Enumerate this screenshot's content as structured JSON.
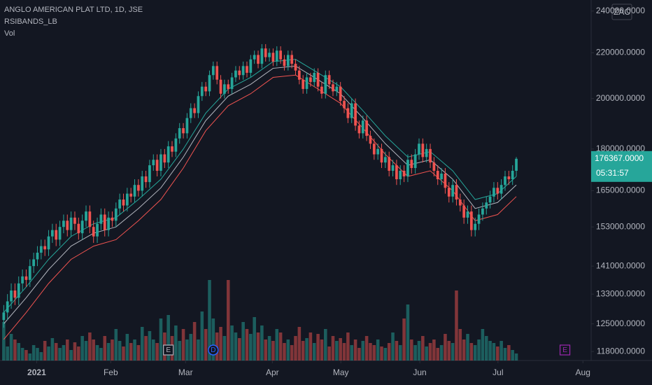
{
  "chart_data": {
    "type": "candlestick",
    "title": "ANGLO AMERICAN PLAT LTD, 1D, JSE",
    "indicator_label": "RSIBANDS_LB",
    "volume_label": "Vol",
    "currency": "ZAC",
    "log_scale": true,
    "up_color": "#26a69a",
    "down_color": "#ef5350",
    "open": [
      126000,
      128000,
      131000,
      134000,
      132000,
      136000,
      138000,
      137000,
      141000,
      143000,
      145000,
      147000,
      146000,
      150000,
      152000,
      149000,
      153000,
      155000,
      152000,
      156000,
      154000,
      151000,
      155000,
      158000,
      153000,
      150000,
      154000,
      157000,
      152000,
      156000,
      155000,
      159000,
      162000,
      160000,
      164000,
      163000,
      167000,
      165000,
      170000,
      168000,
      174000,
      176000,
      172000,
      178000,
      175000,
      181000,
      179000,
      184000,
      188000,
      186000,
      192000,
      196000,
      194000,
      201000,
      205000,
      203000,
      210000,
      214000,
      208000,
      202000,
      206000,
      204000,
      209000,
      212000,
      210000,
      214000,
      211000,
      217000,
      219000,
      215000,
      222000,
      218000,
      220000,
      216000,
      221000,
      217000,
      214000,
      219000,
      215000,
      212000,
      208000,
      204000,
      209000,
      207000,
      211000,
      205000,
      202000,
      210000,
      206000,
      203000,
      205000,
      199000,
      196000,
      192000,
      198000,
      189000,
      186000,
      191000,
      185000,
      182000,
      178000,
      180000,
      175000,
      177000,
      172000,
      174000,
      169000,
      172000,
      170000,
      176000,
      173000,
      178000,
      182000,
      177000,
      180000,
      175000,
      172000,
      169000,
      171000,
      166000,
      163000,
      167000,
      162000,
      160000,
      156000,
      158000,
      152000,
      154000,
      157000,
      159000,
      161000,
      163000,
      166000,
      164000,
      167000,
      170000,
      169000,
      172000
    ],
    "high": [
      130000,
      133000,
      136000,
      136000,
      138000,
      140000,
      140000,
      143000,
      145000,
      147000,
      149000,
      149000,
      152000,
      154000,
      154000,
      155000,
      157000,
      157000,
      158000,
      158000,
      156000,
      157000,
      160000,
      160000,
      155000,
      156000,
      159000,
      159000,
      158000,
      158000,
      161000,
      164000,
      164000,
      166000,
      166000,
      169000,
      169000,
      172000,
      172000,
      176000,
      178000,
      178000,
      180000,
      180000,
      183000,
      183000,
      186000,
      190000,
      190000,
      194000,
      198000,
      198000,
      203000,
      207000,
      207000,
      212000,
      216000,
      216000,
      210000,
      208000,
      208000,
      211000,
      214000,
      214000,
      216000,
      216000,
      219000,
      221000,
      221000,
      224000,
      224000,
      222000,
      222000,
      223000,
      223000,
      219000,
      221000,
      221000,
      217000,
      214000,
      210000,
      211000,
      211000,
      213000,
      213000,
      207000,
      212000,
      212000,
      208000,
      207000,
      207000,
      201000,
      198000,
      200000,
      200000,
      191000,
      193000,
      193000,
      187000,
      184000,
      182000,
      182000,
      179000,
      179000,
      176000,
      176000,
      174000,
      174000,
      178000,
      178000,
      180000,
      184000,
      184000,
      182000,
      182000,
      177000,
      174000,
      173000,
      173000,
      168000,
      169000,
      169000,
      164000,
      162000,
      160000,
      160000,
      156000,
      159000,
      161000,
      163000,
      165000,
      168000,
      168000,
      169000,
      172000,
      172000,
      174000,
      177000
    ],
    "low": [
      124000,
      126000,
      129000,
      130000,
      130000,
      134000,
      135000,
      135000,
      139000,
      141000,
      143000,
      144000,
      144000,
      148000,
      147000,
      147000,
      151000,
      150000,
      150000,
      152000,
      149000,
      149000,
      153000,
      151000,
      148000,
      148000,
      152000,
      150000,
      150000,
      153000,
      153000,
      157000,
      158000,
      158000,
      161000,
      161000,
      163000,
      163000,
      166000,
      166000,
      172000,
      170000,
      170000,
      173000,
      173000,
      177000,
      177000,
      182000,
      184000,
      184000,
      190000,
      192000,
      192000,
      199000,
      201000,
      201000,
      208000,
      206000,
      200000,
      200000,
      202000,
      202000,
      207000,
      208000,
      208000,
      209000,
      209000,
      215000,
      213000,
      213000,
      216000,
      216000,
      214000,
      214000,
      215000,
      212000,
      212000,
      213000,
      210000,
      206000,
      202000,
      202000,
      205000,
      205000,
      203000,
      200000,
      200000,
      204000,
      201000,
      201000,
      197000,
      194000,
      190000,
      190000,
      187000,
      184000,
      184000,
      183000,
      180000,
      176000,
      176000,
      173000,
      173000,
      170000,
      170000,
      167000,
      167000,
      168000,
      168000,
      171000,
      171000,
      176000,
      175000,
      175000,
      173000,
      170000,
      167000,
      167000,
      164000,
      161000,
      161000,
      160000,
      158000,
      154000,
      154000,
      150000,
      150000,
      152000,
      155000,
      157000,
      159000,
      161000,
      162000,
      162000,
      165000,
      167000,
      167000,
      170000
    ],
    "close": [
      128000,
      131000,
      134000,
      132000,
      136000,
      138000,
      137000,
      141000,
      143000,
      145000,
      147000,
      146000,
      150000,
      152000,
      149000,
      153000,
      155000,
      152000,
      156000,
      154000,
      151000,
      155000,
      158000,
      153000,
      150000,
      154000,
      157000,
      152000,
      156000,
      155000,
      159000,
      162000,
      160000,
      164000,
      163000,
      167000,
      165000,
      170000,
      168000,
      174000,
      176000,
      172000,
      178000,
      175000,
      181000,
      179000,
      184000,
      188000,
      186000,
      192000,
      196000,
      194000,
      201000,
      205000,
      203000,
      210000,
      214000,
      208000,
      202000,
      206000,
      204000,
      209000,
      212000,
      210000,
      214000,
      211000,
      217000,
      219000,
      215000,
      222000,
      218000,
      220000,
      216000,
      221000,
      217000,
      214000,
      219000,
      215000,
      212000,
      208000,
      204000,
      209000,
      207000,
      211000,
      205000,
      202000,
      210000,
      206000,
      203000,
      205000,
      199000,
      196000,
      192000,
      198000,
      189000,
      186000,
      191000,
      185000,
      182000,
      178000,
      180000,
      175000,
      177000,
      172000,
      174000,
      169000,
      172000,
      170000,
      176000,
      173000,
      178000,
      182000,
      177000,
      180000,
      175000,
      172000,
      169000,
      171000,
      166000,
      163000,
      167000,
      162000,
      160000,
      156000,
      158000,
      152000,
      154000,
      157000,
      159000,
      161000,
      163000,
      166000,
      164000,
      167000,
      170000,
      169000,
      172000,
      176367
    ],
    "volume": [
      55,
      20,
      38,
      30,
      25,
      18,
      15,
      10,
      22,
      18,
      12,
      28,
      20,
      32,
      25,
      18,
      22,
      30,
      15,
      26,
      20,
      35,
      28,
      40,
      30,
      22,
      18,
      35,
      25,
      30,
      45,
      28,
      20,
      38,
      25,
      30,
      22,
      48,
      35,
      42,
      30,
      25,
      60,
      40,
      65,
      35,
      50,
      28,
      45,
      30,
      38,
      55,
      30,
      70,
      45,
      115,
      60,
      40,
      48,
      35,
      115,
      50,
      40,
      32,
      55,
      45,
      38,
      62,
      40,
      50,
      30,
      35,
      28,
      45,
      40,
      25,
      30,
      22,
      35,
      48,
      28,
      32,
      40,
      25,
      38,
      30,
      45,
      20,
      35,
      28,
      32,
      25,
      40,
      22,
      30,
      18,
      28,
      35,
      25,
      22,
      30,
      20,
      18,
      25,
      40,
      28,
      22,
      60,
      80,
      30,
      22,
      28,
      35,
      20,
      25,
      30,
      18,
      22,
      38,
      28,
      25,
      100,
      45,
      30,
      38,
      25,
      22,
      30,
      45,
      35,
      28,
      25,
      20,
      28,
      18,
      22,
      15,
      10
    ],
    "band_x": [
      0,
      6,
      12,
      18,
      24,
      30,
      36,
      42,
      48,
      54,
      60,
      66,
      72,
      78,
      84,
      90,
      96,
      102,
      108,
      114,
      120,
      126,
      132,
      137
    ],
    "bands": [
      {
        "color": "#26a69a",
        "values": [
          128000,
          135000,
          143000,
          150000,
          154000,
          156000,
          162000,
          169000,
          180000,
          194000,
          204000,
          209000,
          216000,
          217000,
          211000,
          205000,
          195000,
          185000,
          177000,
          179000,
          172000,
          162000,
          164000,
          170000
        ]
      },
      {
        "color": "#b2b5be",
        "values": [
          125000,
          132000,
          140000,
          147000,
          151000,
          153000,
          159000,
          166000,
          177000,
          191000,
          201000,
          206000,
          213000,
          214000,
          208000,
          202000,
          192000,
          182000,
          174000,
          176000,
          169000,
          159000,
          161000,
          167000
        ]
      },
      {
        "color": "#ef5350",
        "values": [
          121000,
          128000,
          136000,
          143000,
          147000,
          149000,
          155000,
          162000,
          173000,
          187000,
          197000,
          202000,
          209000,
          210000,
          204000,
          198000,
          188000,
          178000,
          170000,
          172000,
          165000,
          155000,
          157000,
          163000
        ]
      }
    ],
    "events": [
      {
        "x": 44,
        "label": "E"
      },
      {
        "x": 56,
        "label": "D"
      },
      {
        "x": 150,
        "label": "E"
      }
    ],
    "last_price": {
      "value": 176367,
      "label": "176367.0000"
    },
    "countdown": "05:31:57",
    "xlim": [
      -1,
      157
    ],
    "xticks": [
      {
        "value": 8.8,
        "label": "2021"
      },
      {
        "value": 28.6,
        "label": "Feb"
      },
      {
        "value": 48.6,
        "label": "Mar"
      },
      {
        "value": 71.8,
        "label": "Apr"
      },
      {
        "value": 90.1,
        "label": "May"
      },
      {
        "value": 111.2,
        "label": "Jun"
      },
      {
        "value": 132.1,
        "label": "Jul"
      },
      {
        "value": 154.8,
        "label": "Aug"
      }
    ],
    "ylim": [
      115800,
      245600
    ],
    "yticks": [
      {
        "value": 118000,
        "label": "118000.0000"
      },
      {
        "value": 125000,
        "label": "125000.0000"
      },
      {
        "value": 133000,
        "label": "133000.0000"
      },
      {
        "value": 141000,
        "label": "141000.0000"
      },
      {
        "value": 153000,
        "label": "153000.0000"
      },
      {
        "value": 165000,
        "label": "165000.0000"
      },
      {
        "value": 180000,
        "label": "180000.0000"
      },
      {
        "value": 200000,
        "label": "200000.0000"
      },
      {
        "value": 220000,
        "label": "220000.0000"
      },
      {
        "value": 240000,
        "label": "240000.0000"
      }
    ]
  }
}
